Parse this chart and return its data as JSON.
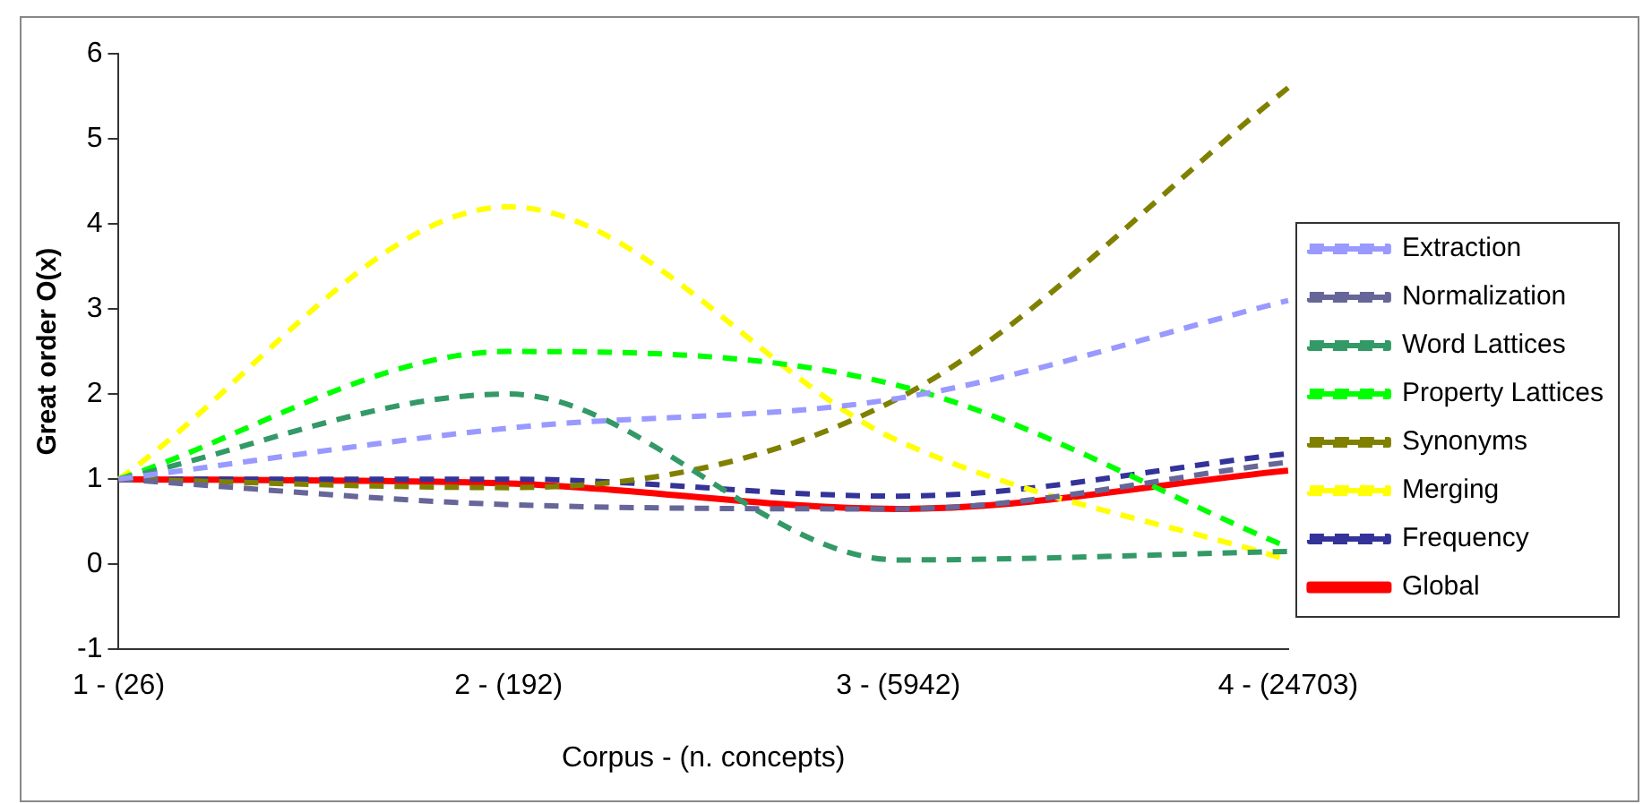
{
  "chart_data": {
    "type": "line",
    "xlabel": "Corpus - (n. concepts)",
    "ylabel": "Great order O(x)",
    "categories": [
      "1 - (26)",
      "2 - (192)",
      "3 - (5942)",
      "4 - (24703)"
    ],
    "ylim": [
      -1,
      6
    ],
    "yticks": [
      -1,
      0,
      1,
      2,
      3,
      4,
      5,
      6
    ],
    "grid": false,
    "legend": "right",
    "marker": "none",
    "series": [
      {
        "name": "Extraction",
        "color": "#9999ff",
        "line_style": "dashed",
        "values": [
          1,
          1.6,
          1.95,
          3.1
        ]
      },
      {
        "name": "Normalization",
        "color": "#666699",
        "line_style": "dashed",
        "values": [
          1,
          0.7,
          0.65,
          1.2
        ]
      },
      {
        "name": "Word Lattices",
        "color": "#339966",
        "line_style": "dashed",
        "values": [
          1,
          2,
          0.05,
          0.15
        ]
      },
      {
        "name": "Property Lattices",
        "color": "#00ff00",
        "line_style": "dashed",
        "values": [
          1,
          2.5,
          2.1,
          0.2
        ]
      },
      {
        "name": "Synonyms",
        "color": "#808000",
        "line_style": "dashed",
        "values": [
          1,
          0.9,
          1.95,
          5.6
        ]
      },
      {
        "name": "Merging",
        "color": "#ffff00",
        "line_style": "dashed",
        "values": [
          1,
          4.2,
          1.45,
          0.05
        ]
      },
      {
        "name": "Frequency",
        "color": "#333399",
        "line_style": "dashed",
        "values": [
          1,
          1,
          0.8,
          1.3
        ]
      },
      {
        "name": "Global",
        "color": "#ff0000",
        "line_style": "solid",
        "values": [
          1,
          0.95,
          0.65,
          1.1
        ]
      }
    ]
  }
}
